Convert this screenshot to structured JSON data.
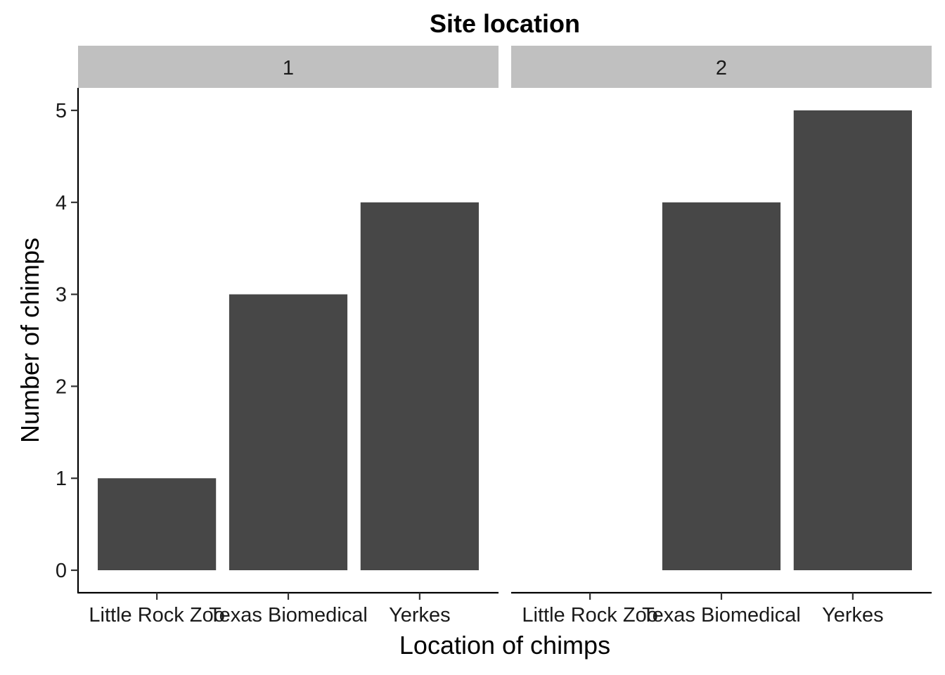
{
  "chart_data": {
    "type": "bar",
    "title": "Site location",
    "xlabel": "Location of chimps",
    "ylabel": "Number of chimps",
    "categories": [
      "Little Rock Zoo",
      "Texas Biomedical",
      "Yerkes"
    ],
    "ylim": [
      0,
      5.25
    ],
    "yticks": [
      "0",
      "1",
      "2",
      "3",
      "4",
      "5"
    ],
    "grid": false,
    "legend": "none",
    "bar_color": "#474747",
    "strip_color": "#c0c0c0",
    "facets": [
      {
        "label": "1",
        "values": [
          1,
          3,
          4
        ]
      },
      {
        "label": "2",
        "values": [
          0,
          4,
          5
        ]
      }
    ]
  }
}
